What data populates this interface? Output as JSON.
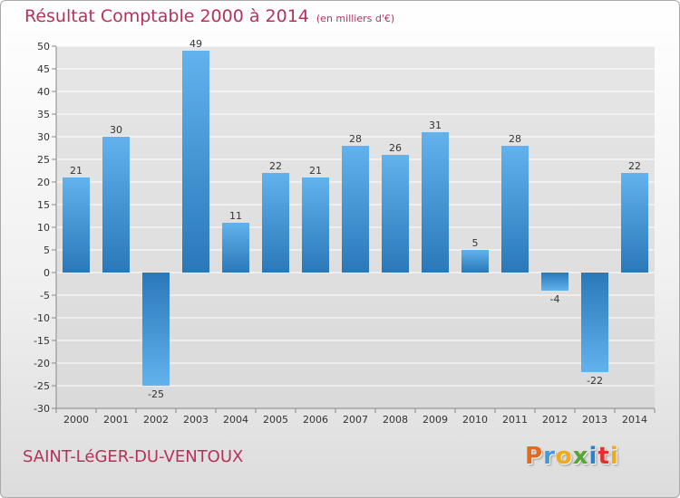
{
  "title": "Résultat Comptable 2000 à 2014",
  "subtitle": "(en milliers d'€)",
  "footer": {
    "commune": "SAINT-LéGER-DU-VENTOUX"
  },
  "logo": {
    "text": "Proxiti",
    "letters": [
      "P",
      "r",
      "o",
      "x",
      "i",
      "t",
      "i"
    ],
    "colors": [
      "#e06b1f",
      "#3f9bd8",
      "#f0a81c",
      "#55a531",
      "#2a82c9",
      "#e0312e",
      "#f0a81c"
    ]
  },
  "colors": {
    "bar_light": "#62b2ee",
    "bar_dark": "#2a78b8",
    "title": "#b5325b",
    "grid": "#ffffff"
  },
  "chart_data": {
    "type": "bar",
    "title": "Résultat Comptable 2000 à 2014",
    "subtitle": "(en milliers d'€)",
    "categories": [
      "2000",
      "2001",
      "2002",
      "2003",
      "2004",
      "2005",
      "2006",
      "2007",
      "2008",
      "2009",
      "2010",
      "2011",
      "2012",
      "2013",
      "2014"
    ],
    "values": [
      21,
      30,
      -25,
      49,
      11,
      22,
      21,
      28,
      26,
      31,
      5,
      28,
      -4,
      -22,
      22
    ],
    "ylim": [
      -30,
      50
    ],
    "yticks": [
      50,
      45,
      40,
      35,
      30,
      25,
      20,
      15,
      10,
      5,
      0,
      -5,
      -10,
      -15,
      -20,
      -25,
      -30
    ],
    "grid": true,
    "legend": "none"
  }
}
